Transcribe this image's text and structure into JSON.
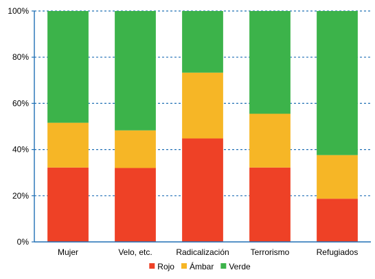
{
  "chart_data": {
    "type": "bar",
    "stacked": true,
    "normalized": true,
    "categories": [
      "Mujer",
      "Velo, etc.",
      "Radicalización",
      "Terrorismo",
      "Refugiados"
    ],
    "series": [
      {
        "name": "Rojo",
        "color": "#EE4126",
        "values": [
          32.2,
          32.0,
          44.8,
          32.2,
          18.7
        ]
      },
      {
        "name": "Ámbar",
        "color": "#F6B626",
        "values": [
          19.4,
          16.3,
          28.5,
          23.3,
          18.9
        ]
      },
      {
        "name": "Verde",
        "color": "#3CB34A",
        "values": [
          48.4,
          51.7,
          26.7,
          44.5,
          62.4
        ]
      }
    ],
    "ylim": [
      0,
      100
    ],
    "yticks": [
      "0%",
      "20%",
      "40%",
      "60%",
      "80%",
      "100%"
    ],
    "grid": "horizontal dashed",
    "legend_position": "bottom-center",
    "title": "",
    "xlabel": "",
    "ylabel": ""
  }
}
